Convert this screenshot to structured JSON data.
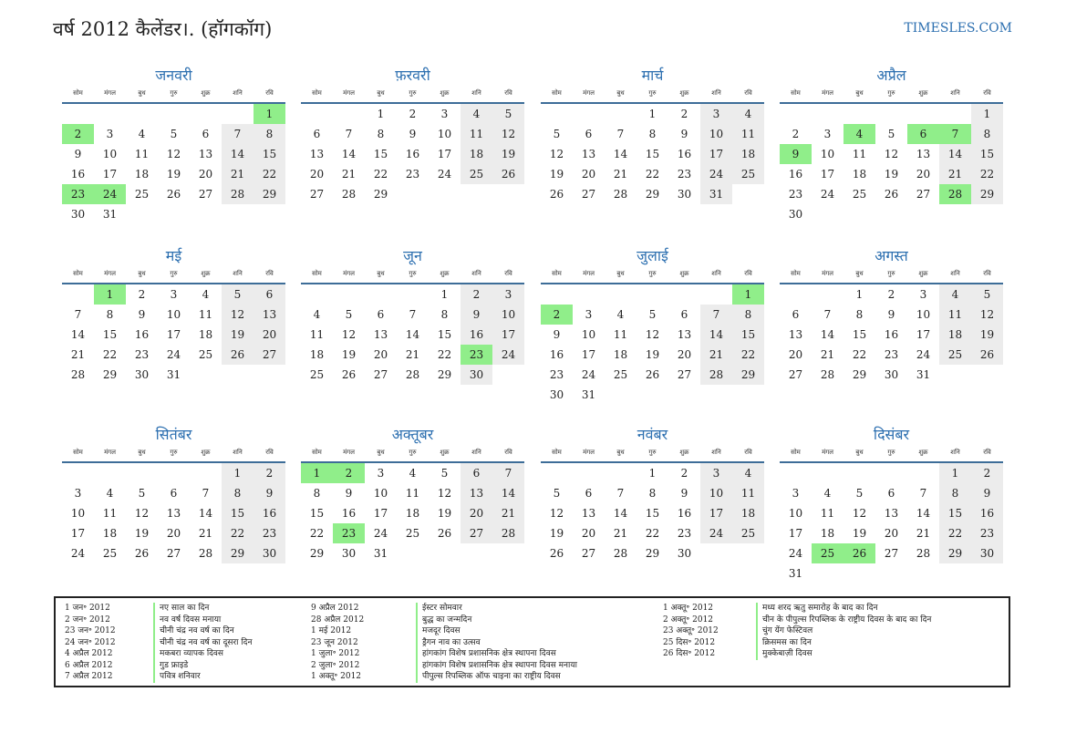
{
  "header": {
    "title": "वर्ष 2012 कैलेंडर।. (हॉगकॉग)",
    "site": "TIMESLES.COM"
  },
  "weekday_labels": [
    "सोम",
    "मंगल",
    "बुध",
    "गुरु",
    "शुक्र",
    "शनि",
    "रवि"
  ],
  "months": [
    {
      "name": "जनवरी",
      "offset": 6,
      "days": 31,
      "holidays": [
        1,
        2,
        23,
        24
      ]
    },
    {
      "name": "फ़रवरी",
      "offset": 2,
      "days": 29,
      "holidays": []
    },
    {
      "name": "मार्च",
      "offset": 3,
      "days": 31,
      "holidays": []
    },
    {
      "name": "अप्रैल",
      "offset": 6,
      "days": 30,
      "holidays": [
        4,
        6,
        7,
        9,
        28
      ]
    },
    {
      "name": "मई",
      "offset": 1,
      "days": 31,
      "holidays": [
        1
      ]
    },
    {
      "name": "जून",
      "offset": 4,
      "days": 30,
      "holidays": [
        23
      ]
    },
    {
      "name": "जुलाई",
      "offset": 6,
      "days": 31,
      "holidays": [
        1,
        2
      ]
    },
    {
      "name": "अगस्त",
      "offset": 2,
      "days": 31,
      "holidays": []
    },
    {
      "name": "सितंबर",
      "offset": 5,
      "days": 30,
      "holidays": []
    },
    {
      "name": "अक्तूबर",
      "offset": 0,
      "days": 31,
      "holidays": [
        1,
        2,
        23
      ]
    },
    {
      "name": "नवंबर",
      "offset": 3,
      "days": 30,
      "holidays": []
    },
    {
      "name": "दिसंबर",
      "offset": 5,
      "days": 31,
      "holidays": [
        25,
        26
      ]
    }
  ],
  "holiday_columns": [
    {
      "dates": [
        "1 जन॰ 2012",
        "2 जन॰ 2012",
        "23 जन॰ 2012",
        "24 जन॰ 2012",
        "4 अप्रैल 2012",
        "6 अप्रैल 2012",
        "7 अप्रैल 2012"
      ],
      "names": [
        "नए साल का दिन",
        "नव वर्ष दिवस मनाया",
        "चीनी चंद्र नव वर्ष का दिन",
        "चीनी चंद्र नव वर्ष का दूसरा दिन",
        "मकबरा व्यापक दिवस",
        "गुड फ्राइडे",
        "पवित्र शनिवार"
      ]
    },
    {
      "dates": [
        "9 अप्रैल 2012",
        "28 अप्रैल 2012",
        "1 मई 2012",
        "23 जून 2012",
        "1 जुला॰ 2012",
        "2 जुला॰ 2012",
        "1 अक्तू॰ 2012"
      ],
      "names": [
        "ईस्टर सोमवार",
        "बुद्ध का जन्मदिन",
        "मजदूर दिवस",
        "ड्रैगन नाव का उत्सव",
        "हांगकांग विशेष प्रशासनिक क्षेत्र स्थापना दिवस",
        "हांगकांग विशेष प्रशासनिक क्षेत्र स्थापना दिवस मनाया",
        "पीपुल्स रिपब्लिक ऑफ चाइना का राष्ट्रीय दिवस"
      ]
    },
    {
      "dates": [
        "1 अक्तू॰ 2012",
        "2 अक्तू॰ 2012",
        "23 अक्तू॰ 2012",
        "25 दिस॰ 2012",
        "26 दिस॰ 2012"
      ],
      "names": [
        "मध्य शरद ऋतु समारोह के बाद का दिन",
        "चीन के पीपुल्स रिपब्लिक के राष्ट्रीय दिवस के बाद का दिन",
        "चुंग येंग फेस्टिवल",
        "क्रिसमस का दिन",
        "मुक्केबाज़ी दिवस"
      ]
    }
  ],
  "colors": {
    "accent": "#2c6fb0",
    "holiday": "#90ee8a",
    "weekend": "#ececec",
    "rule": "#3d6d98"
  }
}
